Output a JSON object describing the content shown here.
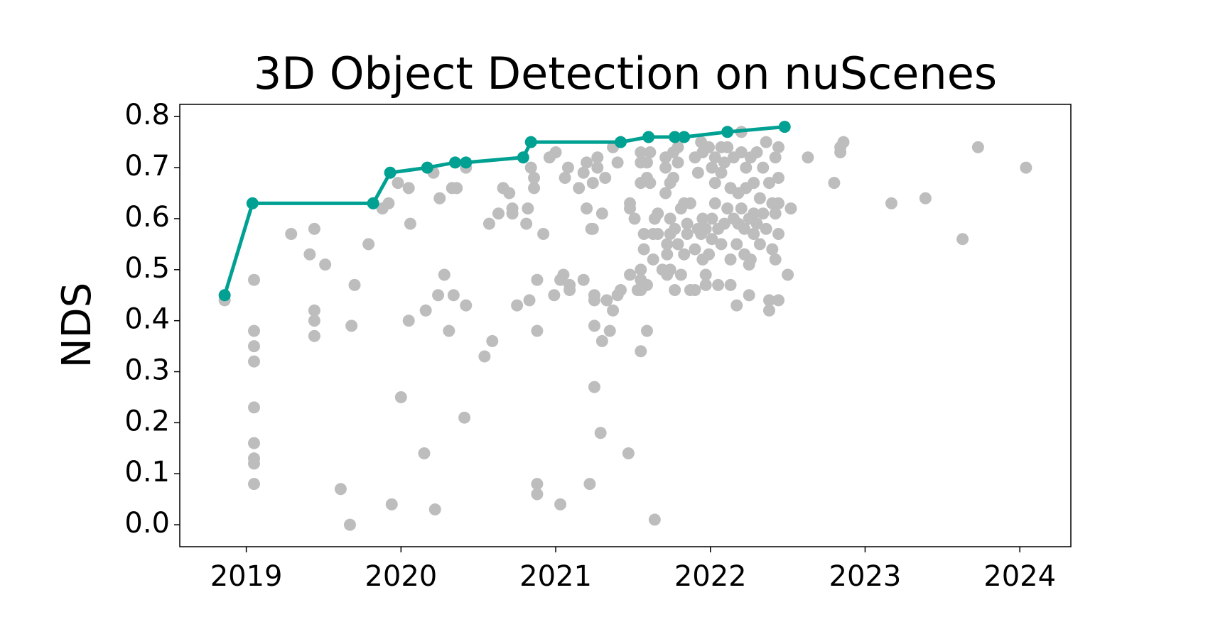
{
  "chart_data": {
    "type": "scatter",
    "title": "3D Object Detection on nuScenes",
    "ylabel": "NDS",
    "xlim": [
      2018.57,
      2024.33
    ],
    "ylim": [
      -0.043,
      0.824
    ],
    "xticks": [
      2019,
      2020,
      2021,
      2022,
      2023,
      2024
    ],
    "yticks": [
      {
        "value": 0,
        "label": "0.0"
      },
      0.1,
      0.2,
      0.3,
      0.4,
      0.5,
      0.6,
      0.7,
      0.8
    ],
    "series": [
      {
        "color": "#bdbdbd",
        "connect": false,
        "x": [
          2018.86,
          2019.05,
          2019.05,
          2019.05,
          2019.05,
          2019.05,
          2019.05,
          2019.05,
          2019.05,
          2019.05,
          2019.29,
          2019.41,
          2019.44,
          2019.44,
          2019.44,
          2019.44,
          2019.51,
          2019.61,
          2019.67,
          2019.68,
          2019.7,
          2019.79,
          2019.88,
          2019.92,
          2019.94,
          2019.98,
          2020.0,
          2020.05,
          2020.05,
          2020.06,
          2020.15,
          2020.16,
          2020.21,
          2020.22,
          2020.24,
          2020.25,
          2020.28,
          2020.31,
          2020.33,
          2020.34,
          2020.36,
          2020.41,
          2020.42,
          2020.42,
          2020.54,
          2020.57,
          2020.59,
          2020.63,
          2020.66,
          2020.7,
          2020.72,
          2020.72,
          2020.75,
          2020.81,
          2020.82,
          2020.83,
          2020.84,
          2020.86,
          2020.86,
          2020.88,
          2020.88,
          2020.88,
          2020.88,
          2020.92,
          2020.96,
          2020.99,
          2021.0,
          2021.03,
          2021.03,
          2021.05,
          2021.06,
          2021.08,
          2021.09,
          2021.09,
          2021.15,
          2021.18,
          2021.18,
          2021.2,
          2021.2,
          2021.22,
          2021.23,
          2021.24,
          2021.24,
          2021.25,
          2021.25,
          2021.25,
          2021.25,
          2021.27,
          2021.27,
          2021.29,
          2021.3,
          2021.3,
          2021.32,
          2021.33,
          2021.35,
          2021.37,
          2021.37,
          2021.4,
          2021.4,
          2021.42,
          2021.47,
          2021.48,
          2021.48,
          2021.48,
          2021.51,
          2021.53,
          2021.55,
          2021.55,
          2021.55,
          2021.55,
          2021.55,
          2021.55,
          2021.55,
          2021.57,
          2021.57,
          2021.59,
          2021.59,
          2021.59,
          2021.59,
          2021.61,
          2021.61,
          2021.63,
          2021.63,
          2021.64,
          2021.64,
          2021.66,
          2021.66,
          2021.69,
          2021.71,
          2021.71,
          2021.71,
          2021.72,
          2021.72,
          2021.72,
          2021.74,
          2021.74,
          2021.74,
          2021.74,
          2021.76,
          2021.76,
          2021.77,
          2021.77,
          2021.79,
          2021.79,
          2021.79,
          2021.81,
          2021.81,
          2021.83,
          2021.83,
          2021.85,
          2021.85,
          2021.87,
          2021.87,
          2021.9,
          2021.9,
          2021.9,
          2021.92,
          2021.92,
          2021.94,
          2021.94,
          2021.95,
          2021.95,
          2021.95,
          2021.97,
          2021.97,
          2021.97,
          2021.99,
          2021.99,
          2022.01,
          2022.01,
          2022.01,
          2022.03,
          2022.03,
          2022.03,
          2022.05,
          2022.05,
          2022.07,
          2022.07,
          2022.07,
          2022.09,
          2022.09,
          2022.11,
          2022.11,
          2022.13,
          2022.13,
          2022.13,
          2022.15,
          2022.15,
          2022.17,
          2022.17,
          2022.18,
          2022.18,
          2022.2,
          2022.2,
          2022.2,
          2022.22,
          2022.22,
          2022.23,
          2022.23,
          2022.25,
          2022.25,
          2022.25,
          2022.26,
          2022.26,
          2022.28,
          2022.28,
          2022.28,
          2022.3,
          2022.3,
          2022.32,
          2022.32,
          2022.34,
          2022.34,
          2022.36,
          2022.36,
          2022.38,
          2022.38,
          2022.38,
          2022.4,
          2022.4,
          2022.42,
          2022.42,
          2022.42,
          2022.44,
          2022.44,
          2022.44,
          2022.44,
          2022.44,
          2022.5,
          2022.52,
          2022.63,
          2022.8,
          2022.84,
          2022.84,
          2022.86,
          2023.17,
          2023.39,
          2023.63,
          2023.73,
          2024.04
        ],
        "values": [
          0.44,
          0.48,
          0.38,
          0.35,
          0.32,
          0.23,
          0.16,
          0.13,
          0.12,
          0.08,
          0.57,
          0.53,
          0.58,
          0.42,
          0.4,
          0.37,
          0.51,
          0.07,
          0.0,
          0.39,
          0.47,
          0.55,
          0.62,
          0.63,
          0.04,
          0.67,
          0.25,
          0.66,
          0.4,
          0.59,
          0.14,
          0.42,
          0.69,
          0.03,
          0.45,
          0.64,
          0.49,
          0.38,
          0.66,
          0.45,
          0.66,
          0.21,
          0.43,
          0.7,
          0.33,
          0.59,
          0.36,
          0.61,
          0.66,
          0.65,
          0.62,
          0.61,
          0.43,
          0.59,
          0.62,
          0.44,
          0.7,
          0.66,
          0.68,
          0.08,
          0.06,
          0.38,
          0.48,
          0.57,
          0.72,
          0.45,
          0.73,
          0.04,
          0.48,
          0.49,
          0.68,
          0.7,
          0.47,
          0.46,
          0.66,
          0.69,
          0.48,
          0.71,
          0.62,
          0.08,
          0.58,
          0.67,
          0.58,
          0.27,
          0.39,
          0.44,
          0.45,
          0.72,
          0.7,
          0.18,
          0.36,
          0.61,
          0.68,
          0.44,
          0.38,
          0.42,
          0.74,
          0.45,
          0.71,
          0.46,
          0.14,
          0.63,
          0.62,
          0.49,
          0.6,
          0.46,
          0.34,
          0.73,
          0.71,
          0.67,
          0.5,
          0.48,
          0.46,
          0.57,
          0.54,
          0.38,
          0.71,
          0.68,
          0.47,
          0.67,
          0.73,
          0.57,
          0.52,
          0.01,
          0.6,
          0.61,
          0.57,
          0.5,
          0.72,
          0.7,
          0.65,
          0.55,
          0.53,
          0.49,
          0.67,
          0.6,
          0.57,
          0.5,
          0.73,
          0.68,
          0.58,
          0.46,
          0.74,
          0.71,
          0.55,
          0.49,
          0.62,
          0.53,
          0.63,
          0.57,
          0.59,
          0.46,
          0.63,
          0.72,
          0.54,
          0.46,
          0.69,
          0.58,
          0.75,
          0.57,
          0.73,
          0.6,
          0.52,
          0.47,
          0.49,
          0.58,
          0.74,
          0.53,
          0.7,
          0.6,
          0.56,
          0.67,
          0.72,
          0.63,
          0.47,
          0.58,
          0.74,
          0.55,
          0.69,
          0.59,
          0.71,
          0.62,
          0.74,
          0.66,
          0.52,
          0.47,
          0.6,
          0.72,
          0.43,
          0.55,
          0.65,
          0.59,
          0.77,
          0.73,
          0.62,
          0.53,
          0.58,
          0.66,
          0.7,
          0.45,
          0.51,
          0.6,
          0.52,
          0.72,
          0.67,
          0.61,
          0.57,
          0.73,
          0.59,
          0.64,
          0.55,
          0.7,
          0.61,
          0.58,
          0.75,
          0.42,
          0.67,
          0.44,
          0.54,
          0.63,
          0.72,
          0.52,
          0.61,
          0.68,
          0.74,
          0.44,
          0.57,
          0.63,
          0.49,
          0.62,
          0.72,
          0.67,
          0.74,
          0.73,
          0.75,
          0.63,
          0.64,
          0.56,
          0.74,
          0.7
        ]
      },
      {
        "color": "#00a092",
        "connect": true,
        "x": [
          2018.86,
          2019.04,
          2019.82,
          2019.93,
          2020.17,
          2020.35,
          2020.42,
          2020.79,
          2020.84,
          2021.42,
          2021.6,
          2021.77,
          2021.83,
          2022.11,
          2022.48
        ],
        "values": [
          0.45,
          0.63,
          0.63,
          0.69,
          0.7,
          0.71,
          0.71,
          0.72,
          0.75,
          0.75,
          0.76,
          0.76,
          0.76,
          0.77,
          0.78
        ]
      }
    ]
  }
}
